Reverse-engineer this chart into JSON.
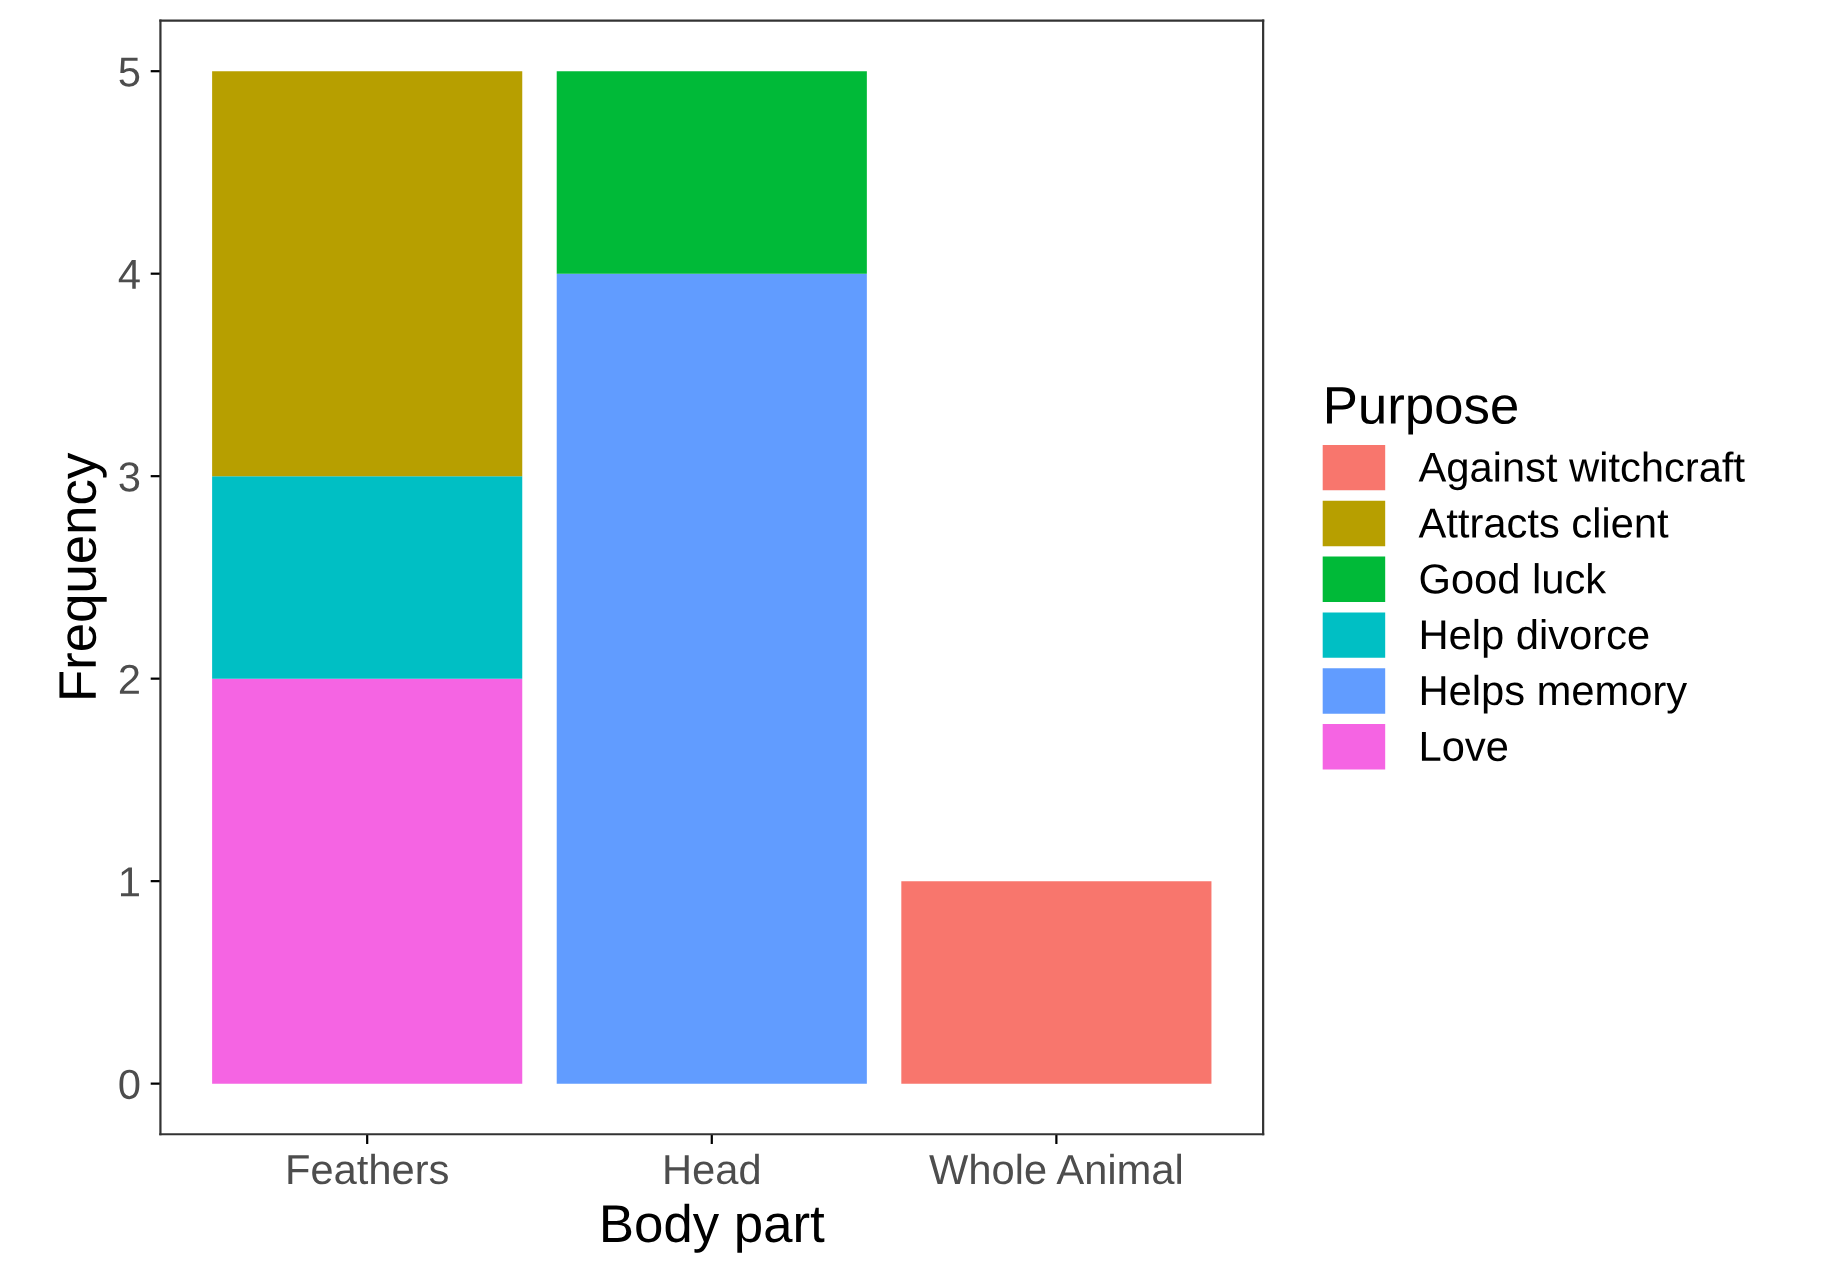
{
  "chart_data": {
    "type": "bar",
    "stacked": true,
    "xlabel": "Body part",
    "ylabel": "Frequency",
    "legend_title": "Purpose",
    "legend": "right",
    "categories": [
      "Feathers",
      "Head",
      "Whole Animal"
    ],
    "series": [
      {
        "name": "Love",
        "color": "#f564e3",
        "values": [
          2,
          null,
          null
        ]
      },
      {
        "name": "Helps memory",
        "color": "#619cff",
        "values": [
          null,
          4,
          null
        ]
      },
      {
        "name": "Help divorce",
        "color": "#00bfc4",
        "values": [
          1,
          null,
          null
        ]
      },
      {
        "name": "Good luck",
        "color": "#00ba38",
        "values": [
          null,
          1,
          null
        ]
      },
      {
        "name": "Attracts client",
        "color": "#b79f00",
        "values": [
          2,
          null,
          null
        ]
      },
      {
        "name": "Against witchcraft",
        "color": "#f8766d",
        "values": [
          null,
          null,
          1
        ]
      }
    ],
    "ylim": [
      -0.25,
      5.25
    ],
    "yticks": [
      0,
      1,
      2,
      3,
      4,
      5
    ],
    "grid": false
  }
}
